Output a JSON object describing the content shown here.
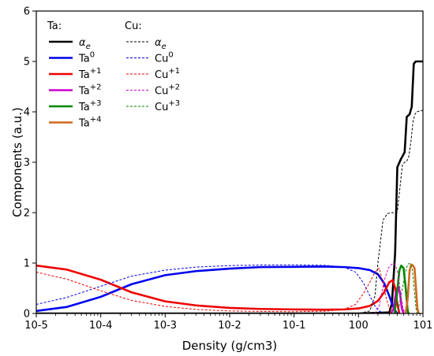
{
  "chart_data": {
    "type": "line",
    "xlabel": "Density (g/cm3)",
    "ylabel": "Components (a.u.)",
    "xscale": "log",
    "xlim": [
      1e-05,
      10
    ],
    "ylim": [
      0,
      6
    ],
    "grid": false,
    "legend_position": "top-left",
    "x_tick_labels": [
      "10-5",
      "10-4",
      "10-3",
      "10-2",
      "10-1",
      "100",
      "101"
    ],
    "y_tick_labels": [
      "0",
      "1",
      "2",
      "3",
      "4",
      "5",
      "6"
    ],
    "legend_group_titles": [
      "Ta:",
      "Cu:"
    ],
    "series": [
      {
        "name": "αe",
        "group": "Ta:",
        "color": "#000000",
        "style": "solid",
        "x": [
          1e-05,
          0.001,
          1,
          3.0,
          3.3,
          3.7,
          4.0,
          4.5,
          5.2,
          5.6,
          6.2,
          6.7,
          7.2,
          7.7,
          8.2,
          9.0,
          10
        ],
        "y": [
          0,
          0,
          0,
          0.02,
          0.2,
          1.2,
          2.9,
          3.05,
          3.2,
          3.9,
          3.95,
          4.1,
          4.95,
          5.0,
          5.0,
          5.0,
          5.0
        ]
      },
      {
        "name": "Ta0",
        "group": "Ta:",
        "color": "#0000ee",
        "style": "solid",
        "x": [
          1e-05,
          3e-05,
          0.0001,
          0.0003,
          0.001,
          0.003,
          0.01,
          0.03,
          0.1,
          0.3,
          0.6,
          1.0,
          1.5,
          2.0,
          2.5,
          3.0,
          3.3,
          3.6,
          4.0
        ],
        "y": [
          0.05,
          0.13,
          0.33,
          0.58,
          0.76,
          0.84,
          0.89,
          0.92,
          0.925,
          0.93,
          0.92,
          0.9,
          0.86,
          0.78,
          0.6,
          0.35,
          0.2,
          0.08,
          0
        ]
      },
      {
        "name": "Ta+1",
        "group": "Ta:",
        "color": "#ee0000",
        "style": "solid",
        "x": [
          1e-05,
          3e-05,
          0.0001,
          0.0003,
          0.001,
          0.003,
          0.01,
          0.03,
          0.1,
          0.3,
          0.6,
          1.0,
          1.5,
          2.0,
          2.5,
          3.0,
          3.4,
          3.7,
          4.0,
          4.3
        ],
        "y": [
          0.95,
          0.87,
          0.67,
          0.42,
          0.24,
          0.16,
          0.11,
          0.09,
          0.08,
          0.075,
          0.08,
          0.1,
          0.15,
          0.25,
          0.42,
          0.62,
          0.66,
          0.5,
          0.2,
          0
        ]
      },
      {
        "name": "Ta+2",
        "group": "Ta:",
        "color": "#cc00cc",
        "style": "solid",
        "x": [
          3.2,
          3.5,
          3.8,
          4.1,
          4.4,
          4.7,
          5.0
        ],
        "y": [
          0,
          0.1,
          0.4,
          0.55,
          0.4,
          0.1,
          0
        ]
      },
      {
        "name": "Ta+3",
        "group": "Ta:",
        "color": "#008800",
        "style": "solid",
        "x": [
          3.6,
          3.9,
          4.3,
          4.6,
          5.0,
          5.4,
          5.8,
          6.0
        ],
        "y": [
          0,
          0.3,
          0.85,
          0.95,
          0.9,
          0.5,
          0.05,
          0
        ]
      },
      {
        "name": "Ta+4",
        "group": "Ta:",
        "color": "#d2691e",
        "style": "solid",
        "x": [
          5.4,
          5.8,
          6.2,
          6.6,
          7.0,
          7.4,
          7.8,
          8.2,
          8.6
        ],
        "y": [
          0,
          0.3,
          0.85,
          0.97,
          0.95,
          0.9,
          0.5,
          0.1,
          0
        ]
      },
      {
        "name": "αe",
        "group": "Cu:",
        "color": "#000000",
        "style": "dashed",
        "x": [
          1e-05,
          0.001,
          1.0,
          1.5,
          1.8,
          2.0,
          2.4,
          2.8,
          3.2,
          3.5,
          3.8,
          4.0,
          4.4,
          4.8,
          5.2,
          5.6,
          6.0,
          6.5,
          7.0,
          7.5,
          8.0,
          9.0,
          10
        ],
        "y": [
          0,
          0,
          0,
          0.05,
          0.35,
          1.0,
          1.85,
          1.98,
          2.0,
          2.0,
          2.01,
          2.02,
          2.5,
          2.95,
          3.0,
          3.02,
          3.1,
          3.4,
          3.8,
          3.95,
          4.0,
          4.02,
          4.03
        ]
      },
      {
        "name": "Cu0",
        "group": "Cu:",
        "color": "#0000ee",
        "style": "dashed",
        "x": [
          1e-05,
          3e-05,
          0.0001,
          0.0003,
          0.001,
          0.003,
          0.01,
          0.03,
          0.1,
          0.3,
          0.6,
          0.9,
          1.2,
          1.5,
          1.8,
          2.1,
          2.4,
          2.7
        ],
        "y": [
          0.18,
          0.32,
          0.54,
          0.74,
          0.86,
          0.92,
          0.95,
          0.96,
          0.965,
          0.955,
          0.92,
          0.82,
          0.6,
          0.35,
          0.15,
          0.05,
          0.01,
          0
        ]
      },
      {
        "name": "Cu+1",
        "group": "Cu:",
        "color": "#ee0000",
        "style": "dashed",
        "x": [
          1e-05,
          3e-05,
          0.0001,
          0.0003,
          0.001,
          0.003,
          0.01,
          0.03,
          0.1,
          0.3,
          0.6,
          0.9,
          1.2,
          1.5,
          1.8,
          2.1,
          2.4,
          2.7,
          3.0,
          3.3
        ],
        "y": [
          0.82,
          0.68,
          0.45,
          0.26,
          0.14,
          0.08,
          0.05,
          0.04,
          0.035,
          0.045,
          0.08,
          0.18,
          0.4,
          0.62,
          0.82,
          0.9,
          0.6,
          0.3,
          0.1,
          0
        ]
      },
      {
        "name": "Cu+2",
        "group": "Cu:",
        "color": "#cc00cc",
        "style": "dashed",
        "x": [
          1.8,
          2.1,
          2.5,
          2.9,
          3.3,
          3.7,
          4.1,
          4.5,
          4.9,
          5.3
        ],
        "y": [
          0,
          0.15,
          0.65,
          0.9,
          0.98,
          0.98,
          0.8,
          0.4,
          0.1,
          0
        ]
      },
      {
        "name": "Cu+3",
        "group": "Cu:",
        "color": "#008800",
        "style": "dashed",
        "x": [
          3.8,
          4.2,
          4.8,
          5.3,
          5.8,
          6.3,
          6.8,
          7.3,
          7.8,
          8.2
        ],
        "y": [
          0,
          0.1,
          0.5,
          0.8,
          0.98,
          0.99,
          0.9,
          0.5,
          0.1,
          0
        ]
      }
    ]
  }
}
